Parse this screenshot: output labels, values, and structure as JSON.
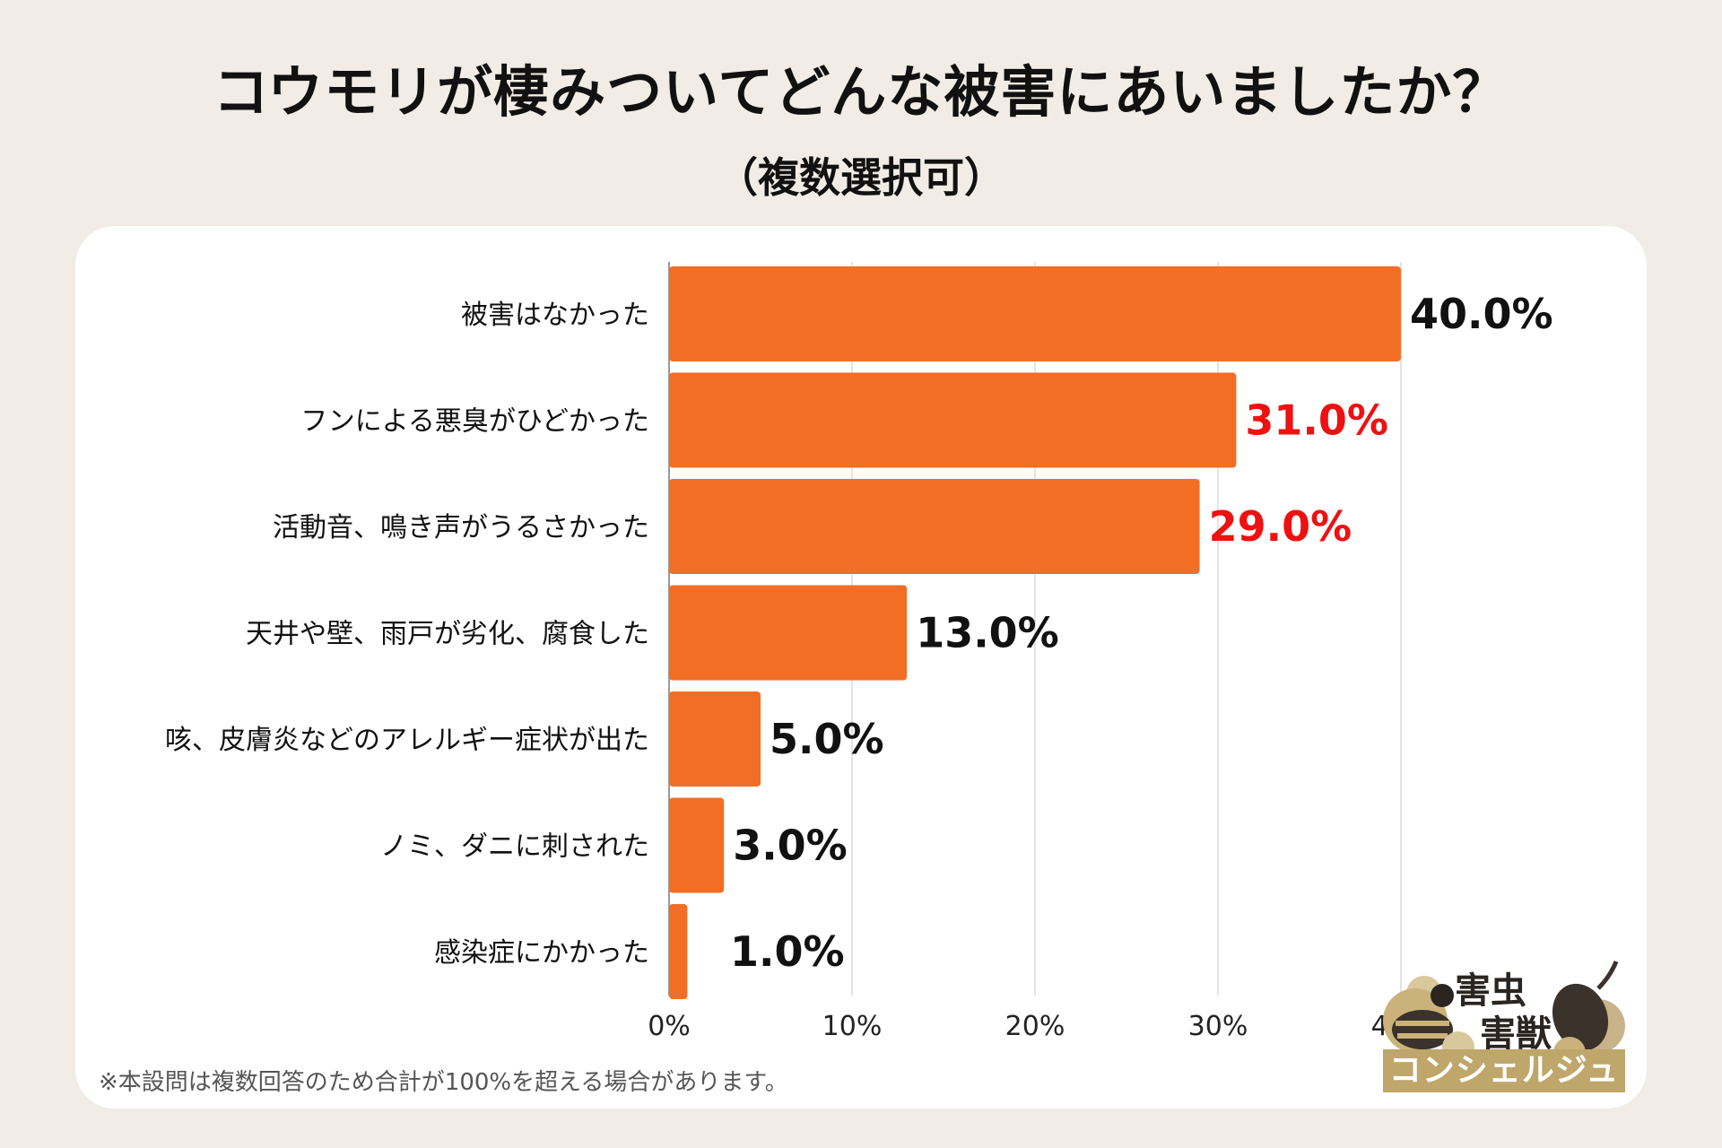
{
  "header": {
    "title": "コウモリが棲みついてどんな被害にあいましたか？",
    "subtitle": "（複数選択可）"
  },
  "chart_data": {
    "type": "bar",
    "orientation": "horizontal",
    "title": "コウモリが棲みついてどんな被害にあいましたか？",
    "subtitle": "（複数選択可）",
    "categories": [
      "被害はなかった",
      "フンによる悪臭がひどかった",
      "活動音、鳴き声がうるさかった",
      "天井や壁、雨戸が劣化、腐食した",
      "咳、皮膚炎などのアレルギー症状が出た",
      "ノミ、ダニに刺された",
      "感染症にかかった"
    ],
    "values": [
      40.0,
      31.0,
      29.0,
      13.0,
      5.0,
      3.0,
      1.0
    ],
    "value_labels": [
      "40.0%",
      "31.0%",
      "29.0%",
      "13.0%",
      "5.0%",
      "3.0%",
      "1.0%"
    ],
    "highlight_indices": [
      1,
      2
    ],
    "xlim": [
      0,
      40
    ],
    "xticks": [
      "0%",
      "10%",
      "20%",
      "30%",
      "40%"
    ],
    "grid": true,
    "bar_color": "#f26e25",
    "label_color": "#111111",
    "highlight_color": "#ee1111"
  },
  "footnote": "※本設問は複数回答のため合計が100%を超える場合があります。",
  "logo": {
    "line1": "害虫",
    "line2": "害獣",
    "band": "コンシェルジュ",
    "icon": "bee-and-mouse-icon"
  }
}
